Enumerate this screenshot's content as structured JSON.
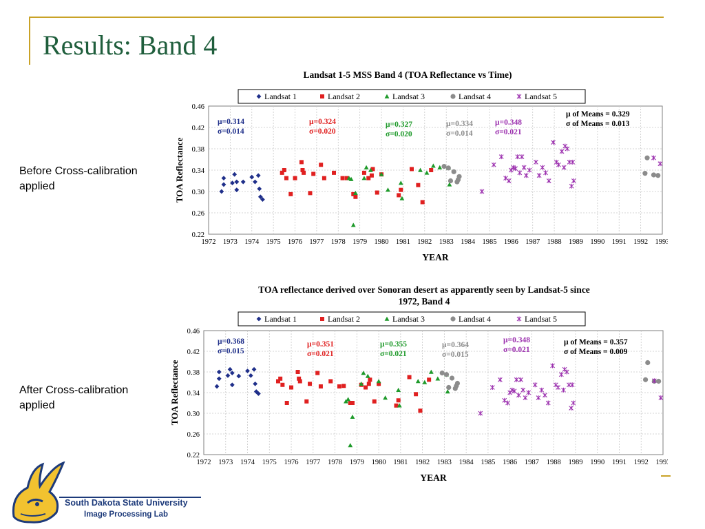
{
  "slide": {
    "title": "Results: Band 4",
    "label_before": "Before Cross-calibration applied",
    "label_after": "After Cross-calibration applied",
    "logo_line1": "South Dakota State University",
    "logo_line2": "Image Processing Lab"
  },
  "colors": {
    "title": "#1f5e3c",
    "frame": "#c9a227",
    "landsat1": "#1f2f8a",
    "landsat2": "#e02020",
    "landsat3": "#1e9a2a",
    "landsat4": "#8c8c8c",
    "landsat5": "#9b2fae"
  },
  "chart_data": [
    {
      "type": "scatter",
      "title": "Landsat 1-5 MSS Band 4 (TOA Reflectance vs Time)",
      "xlabel": "YEAR",
      "ylabel": "TOA Reflectance",
      "xlim": [
        1972,
        1993
      ],
      "ylim": [
        0.22,
        0.46
      ],
      "x_ticks": [
        "1972",
        "1973",
        "1974",
        "1975",
        "1976",
        "1977",
        "1978",
        "1979",
        "1980",
        "1981",
        "1982",
        "1983",
        "1984",
        "1985",
        "1986",
        "1987",
        "1988",
        "1989",
        "1990",
        "1991",
        "1992",
        "1993"
      ],
      "y_ticks": [
        "0.22",
        "0.26",
        "0.30",
        "0.34",
        "0.38",
        "0.42",
        "0.46"
      ],
      "grid": true,
      "legend": "top",
      "series": [
        {
          "name": "Landsat 1",
          "marker": "diamond",
          "x": [
            1972.6,
            1972.7,
            1972.7,
            1973.1,
            1973.2,
            1973.3,
            1973.3,
            1973.6,
            1974.0,
            1974.15,
            1974.3,
            1974.35,
            1974.4,
            1974.5
          ],
          "y": [
            0.3,
            0.325,
            0.313,
            0.316,
            0.332,
            0.303,
            0.318,
            0.318,
            0.327,
            0.318,
            0.33,
            0.305,
            0.29,
            0.285
          ]
        },
        {
          "name": "Landsat 2",
          "marker": "square",
          "x": [
            1975.4,
            1975.5,
            1975.6,
            1975.8,
            1976.0,
            1976.3,
            1976.35,
            1976.4,
            1976.7,
            1976.85,
            1977.2,
            1977.35,
            1977.8,
            1978.2,
            1978.4,
            1978.7,
            1978.8,
            1979.2,
            1979.4,
            1979.55,
            1979.6,
            1979.8,
            1980.0,
            1980.8,
            1980.9,
            1981.4,
            1981.7,
            1981.9,
            1982.3
          ],
          "y": [
            0.335,
            0.34,
            0.325,
            0.295,
            0.325,
            0.355,
            0.34,
            0.335,
            0.297,
            0.333,
            0.35,
            0.325,
            0.335,
            0.325,
            0.325,
            0.295,
            0.29,
            0.335,
            0.325,
            0.33,
            0.342,
            0.298,
            0.332,
            0.293,
            0.303,
            0.342,
            0.312,
            0.28,
            0.34
          ]
        },
        {
          "name": "Landsat 3",
          "marker": "triangle",
          "x": [
            1978.5,
            1978.6,
            1978.7,
            1978.8,
            1979.2,
            1979.3,
            1979.5,
            1980.0,
            1980.3,
            1980.9,
            1980.95,
            1981.8,
            1982.1,
            1982.4,
            1982.7,
            1983.1,
            1983.15
          ],
          "y": [
            0.325,
            0.323,
            0.237,
            0.297,
            0.325,
            0.345,
            0.34,
            0.332,
            0.303,
            0.316,
            0.287,
            0.34,
            0.335,
            0.348,
            0.345,
            0.344,
            0.313
          ]
        },
        {
          "name": "Landsat 4",
          "marker": "circle",
          "x": [
            1982.9,
            1983.1,
            1983.2,
            1983.35,
            1983.5,
            1983.55,
            1983.6,
            1992.2,
            1992.3,
            1992.6,
            1992.8
          ],
          "y": [
            0.347,
            0.344,
            0.32,
            0.337,
            0.318,
            0.322,
            0.328,
            0.334,
            0.363,
            0.331,
            0.33
          ]
        },
        {
          "name": "Landsat 5",
          "marker": "x",
          "x": [
            1984.65,
            1985.2,
            1985.55,
            1985.75,
            1985.9,
            1986.0,
            1986.1,
            1986.2,
            1986.3,
            1986.4,
            1986.5,
            1986.6,
            1986.7,
            1986.85,
            1987.15,
            1987.3,
            1987.45,
            1987.6,
            1987.75,
            1987.95,
            1988.1,
            1988.2,
            1988.35,
            1988.45,
            1988.5,
            1988.6,
            1988.7,
            1988.8,
            1988.85,
            1988.9,
            1992.6,
            1992.9
          ],
          "y": [
            0.3,
            0.35,
            0.365,
            0.325,
            0.32,
            0.34,
            0.345,
            0.343,
            0.365,
            0.335,
            0.365,
            0.345,
            0.33,
            0.34,
            0.355,
            0.33,
            0.345,
            0.335,
            0.32,
            0.392,
            0.355,
            0.35,
            0.375,
            0.345,
            0.385,
            0.38,
            0.355,
            0.31,
            0.355,
            0.32,
            0.363,
            0.352
          ]
        }
      ],
      "annotations": [
        {
          "series": "Landsat 1",
          "mu": "μ=0.314",
          "sigma": "σ=0.014"
        },
        {
          "series": "Landsat 2",
          "mu": "μ=0.324",
          "sigma": "σ=0.020"
        },
        {
          "series": "Landsat 3",
          "mu": "μ=0.327",
          "sigma": "σ=0.020"
        },
        {
          "series": "Landsat 4",
          "mu": "μ=0.334",
          "sigma": "σ=0.014"
        },
        {
          "series": "Landsat 5",
          "mu": "μ=0.348",
          "sigma": "σ=0.021"
        },
        {
          "series": "summary",
          "mu": "μ of Means = 0.329",
          "sigma": "σ of Means = 0.013"
        }
      ]
    },
    {
      "type": "scatter",
      "title": "TOA reflectance derived over Sonoran desert as apparently seen by Landsat-5 since 1972,  Band 4",
      "xlabel": "YEAR",
      "ylabel": "TOA Reflectance",
      "xlim": [
        1972,
        1993
      ],
      "ylim": [
        0.22,
        0.46
      ],
      "x_ticks": [
        "1972",
        "1973",
        "1974",
        "1975",
        "1976",
        "1977",
        "1978",
        "1979",
        "1980",
        "1981",
        "1982",
        "1983",
        "1984",
        "1985",
        "1986",
        "1987",
        "1988",
        "1989",
        "1990",
        "1991",
        "1992",
        "1993"
      ],
      "y_ticks": [
        "0.22",
        "0.26",
        "0.30",
        "0.34",
        "0.38",
        "0.42",
        "0.46"
      ],
      "grid": true,
      "legend": "top",
      "series": [
        {
          "name": "Landsat 1",
          "marker": "diamond",
          "x": [
            1972.6,
            1972.7,
            1972.7,
            1973.1,
            1973.2,
            1973.3,
            1973.3,
            1973.6,
            1974.0,
            1974.15,
            1974.3,
            1974.35,
            1974.4,
            1974.5
          ],
          "y": [
            0.352,
            0.38,
            0.367,
            0.373,
            0.385,
            0.355,
            0.378,
            0.372,
            0.382,
            0.373,
            0.385,
            0.357,
            0.342,
            0.338
          ]
        },
        {
          "name": "Landsat 2",
          "marker": "square",
          "x": [
            1975.4,
            1975.5,
            1975.6,
            1975.8,
            1976.0,
            1976.3,
            1976.35,
            1976.4,
            1976.7,
            1976.85,
            1977.2,
            1977.35,
            1977.8,
            1978.2,
            1978.4,
            1978.7,
            1978.8,
            1979.2,
            1979.4,
            1979.55,
            1979.6,
            1979.8,
            1980.0,
            1980.8,
            1980.9,
            1981.4,
            1981.7,
            1981.9,
            1982.3
          ],
          "y": [
            0.362,
            0.367,
            0.355,
            0.32,
            0.35,
            0.38,
            0.367,
            0.362,
            0.323,
            0.357,
            0.378,
            0.352,
            0.362,
            0.352,
            0.353,
            0.32,
            0.32,
            0.355,
            0.35,
            0.357,
            0.365,
            0.323,
            0.357,
            0.315,
            0.325,
            0.37,
            0.337,
            0.305,
            0.365
          ]
        },
        {
          "name": "Landsat 3",
          "marker": "triangle",
          "x": [
            1978.5,
            1978.6,
            1978.7,
            1978.8,
            1979.2,
            1979.3,
            1979.5,
            1980.0,
            1980.3,
            1980.9,
            1980.95,
            1981.8,
            1982.1,
            1982.4,
            1982.7,
            1983.1,
            1983.15
          ],
          "y": [
            0.323,
            0.327,
            0.238,
            0.293,
            0.357,
            0.378,
            0.372,
            0.362,
            0.33,
            0.345,
            0.315,
            0.362,
            0.36,
            0.38,
            0.367,
            0.375,
            0.342
          ]
        },
        {
          "name": "Landsat 4",
          "marker": "circle",
          "x": [
            1982.9,
            1983.1,
            1983.2,
            1983.35,
            1983.5,
            1983.55,
            1983.6,
            1992.2,
            1992.3,
            1992.6,
            1992.8
          ],
          "y": [
            0.378,
            0.375,
            0.35,
            0.368,
            0.348,
            0.353,
            0.358,
            0.365,
            0.398,
            0.362,
            0.362
          ]
        },
        {
          "name": "Landsat 5",
          "marker": "x",
          "x": [
            1984.65,
            1985.2,
            1985.55,
            1985.75,
            1985.9,
            1986.0,
            1986.1,
            1986.2,
            1986.3,
            1986.4,
            1986.5,
            1986.6,
            1986.7,
            1986.85,
            1987.15,
            1987.3,
            1987.45,
            1987.6,
            1987.75,
            1987.95,
            1988.1,
            1988.2,
            1988.35,
            1988.45,
            1988.5,
            1988.6,
            1988.7,
            1988.8,
            1988.85,
            1988.9,
            1992.6,
            1992.9
          ],
          "y": [
            0.3,
            0.35,
            0.365,
            0.325,
            0.32,
            0.34,
            0.345,
            0.343,
            0.365,
            0.335,
            0.365,
            0.345,
            0.33,
            0.34,
            0.355,
            0.33,
            0.345,
            0.335,
            0.32,
            0.392,
            0.355,
            0.35,
            0.375,
            0.345,
            0.385,
            0.38,
            0.355,
            0.31,
            0.355,
            0.32,
            0.363,
            0.33
          ]
        }
      ],
      "annotations": [
        {
          "series": "Landsat 1",
          "mu": "μ=0.368",
          "sigma": "σ=0.015"
        },
        {
          "series": "Landsat 2",
          "mu": "μ=0.351",
          "sigma": "σ=0.021"
        },
        {
          "series": "Landsat 3",
          "mu": "μ=0.355",
          "sigma": "σ=0.021"
        },
        {
          "series": "Landsat 4",
          "mu": "μ=0.364",
          "sigma": "σ=0.015"
        },
        {
          "series": "Landsat 5",
          "mu": "μ=0.348",
          "sigma": "σ=0.021"
        },
        {
          "series": "summary",
          "mu": "μ of Means = 0.357",
          "sigma": "σ of Means = 0.009"
        }
      ]
    }
  ]
}
